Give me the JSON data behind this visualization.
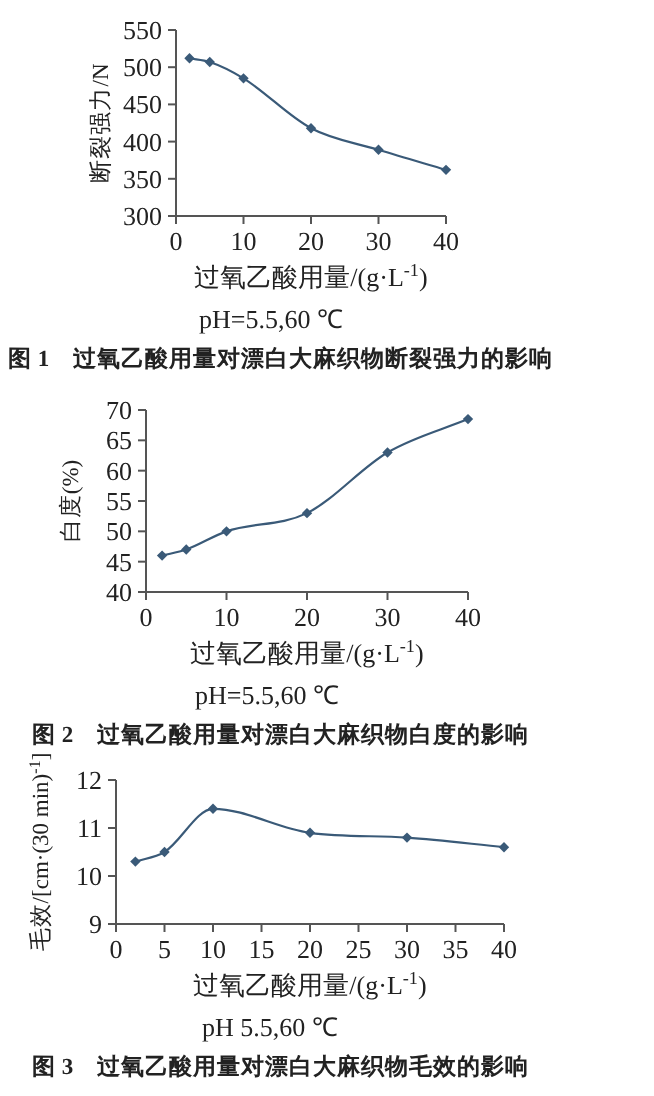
{
  "chart_data": [
    {
      "type": "line",
      "xlabel": "过氧乙酸用量/(g·L$^{-1}$)",
      "ylabel": "断裂强力/N",
      "x": [
        2,
        5,
        10,
        20,
        30,
        40
      ],
      "series": [
        {
          "color": "#3a5a78",
          "values": [
            512,
            507,
            485,
            418,
            389,
            362
          ]
        }
      ],
      "xlim": [
        0,
        40
      ],
      "xticks": [
        0,
        10,
        20,
        30,
        40
      ],
      "ylim": [
        300,
        550
      ],
      "yticks": [
        300,
        350,
        400,
        450,
        500,
        550
      ],
      "marker": "diamond",
      "line_style": "solid",
      "annotations": [
        "pH=5.5,60 ℃",
        "图 1　过氧乙酸用量对漂白大麻织物断裂强力的影响"
      ]
    },
    {
      "type": "line",
      "xlabel": "过氧乙酸用量/(g·L$^{-1}$)",
      "ylabel": "白度(%)",
      "x": [
        2,
        5,
        10,
        20,
        30,
        40
      ],
      "series": [
        {
          "color": "#3a5a78",
          "values": [
            46,
            47,
            50,
            53,
            63,
            68.5
          ]
        }
      ],
      "xlim": [
        0,
        40
      ],
      "xticks": [
        0,
        10,
        20,
        30,
        40
      ],
      "ylim": [
        40,
        70
      ],
      "yticks": [
        40,
        45,
        50,
        55,
        60,
        65,
        70
      ],
      "marker": "diamond",
      "line_style": "solid",
      "annotations": [
        "pH=5.5,60 ℃",
        "图 2　过氧乙酸用量对漂白大麻织物白度的影响"
      ]
    },
    {
      "type": "line",
      "xlabel": "过氧乙酸用量/(g·L$^{-1}$)",
      "ylabel": "毛效/[cm·(30 min)$^{-1}$]",
      "x": [
        2,
        5,
        10,
        20,
        30,
        40
      ],
      "series": [
        {
          "color": "#3a5a78",
          "values": [
            10.3,
            10.5,
            11.4,
            10.9,
            10.8,
            10.6
          ]
        }
      ],
      "xlim": [
        0,
        40
      ],
      "xticks": [
        0,
        5,
        10,
        15,
        20,
        25,
        30,
        35,
        40
      ],
      "ylim": [
        9,
        12
      ],
      "yticks": [
        9,
        10,
        11,
        12
      ],
      "marker": "diamond",
      "line_style": "solid",
      "annotations": [
        "pH 5.5,60 ℃",
        "图 3　过氧乙酸用量对漂白大麻织物毛效的影响"
      ]
    }
  ]
}
